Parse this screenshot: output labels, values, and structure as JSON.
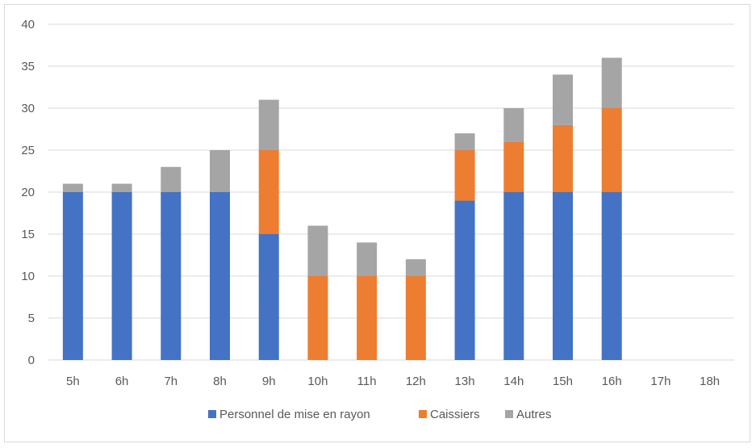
{
  "chart_data": {
    "type": "bar",
    "stacked": true,
    "categories": [
      "5h",
      "6h",
      "7h",
      "8h",
      "9h",
      "10h",
      "11h",
      "12h",
      "13h",
      "14h",
      "15h",
      "16h",
      "17h",
      "18h"
    ],
    "series": [
      {
        "name": "Personnel de mise en rayon",
        "color": "#4472C4",
        "values": [
          20,
          20,
          20,
          20,
          15,
          0,
          0,
          0,
          19,
          20,
          20,
          20,
          0,
          0
        ]
      },
      {
        "name": "Caissiers",
        "color": "#ED7D31",
        "values": [
          0,
          0,
          0,
          0,
          10,
          10,
          10,
          10,
          6,
          6,
          8,
          10,
          0,
          0
        ]
      },
      {
        "name": "Autres",
        "color": "#A5A5A5",
        "values": [
          1,
          1,
          3,
          5,
          6,
          6,
          4,
          2,
          2,
          4,
          6,
          6,
          0,
          0
        ]
      }
    ],
    "ylim": [
      0,
      40
    ],
    "yticks": [
      0,
      5,
      10,
      15,
      20,
      25,
      30,
      35,
      40
    ],
    "grid": true,
    "legend": "bottom",
    "title": "",
    "xlabel": "",
    "ylabel": ""
  }
}
